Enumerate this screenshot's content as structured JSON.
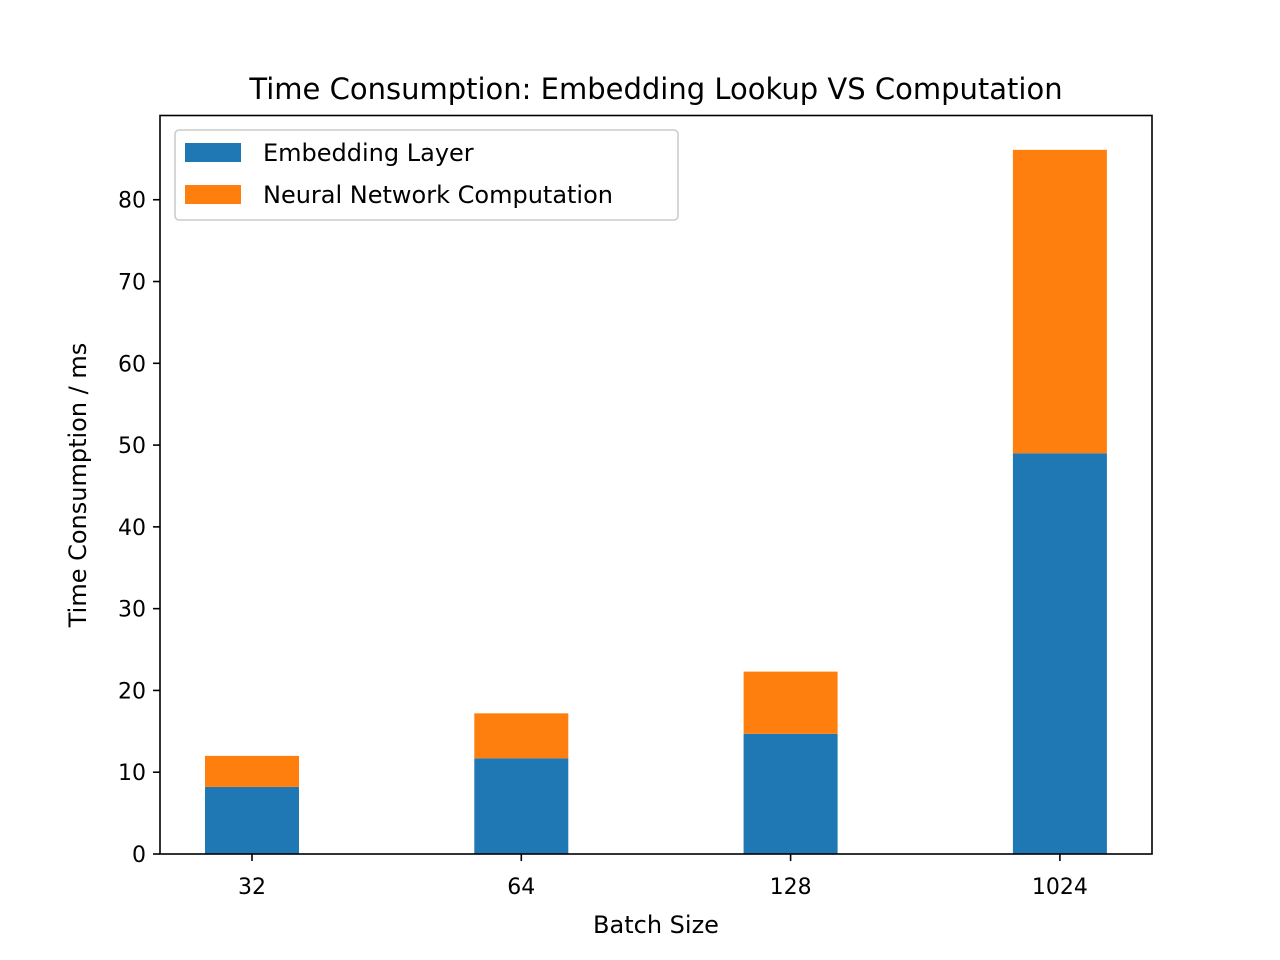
{
  "chart_data": {
    "type": "bar",
    "stacked": true,
    "title": "Time Consumption: Embedding Lookup VS Computation",
    "xlabel": "Batch Size",
    "ylabel": "Time Consumption / ms",
    "categories": [
      "32",
      "64",
      "128",
      "1024"
    ],
    "ylim": [
      0,
      90.3
    ],
    "yticks": [
      0,
      10,
      20,
      30,
      40,
      50,
      60,
      70,
      80
    ],
    "grid": false,
    "legend_position": "upper-left",
    "series": [
      {
        "name": "Embedding Layer",
        "color": "#1f77b4",
        "values": [
          8.2,
          11.7,
          14.7,
          49.0
        ]
      },
      {
        "name": "Neural Network Computation",
        "color": "#ff7f0e",
        "values": [
          3.8,
          5.5,
          7.6,
          37.1
        ]
      }
    ]
  }
}
